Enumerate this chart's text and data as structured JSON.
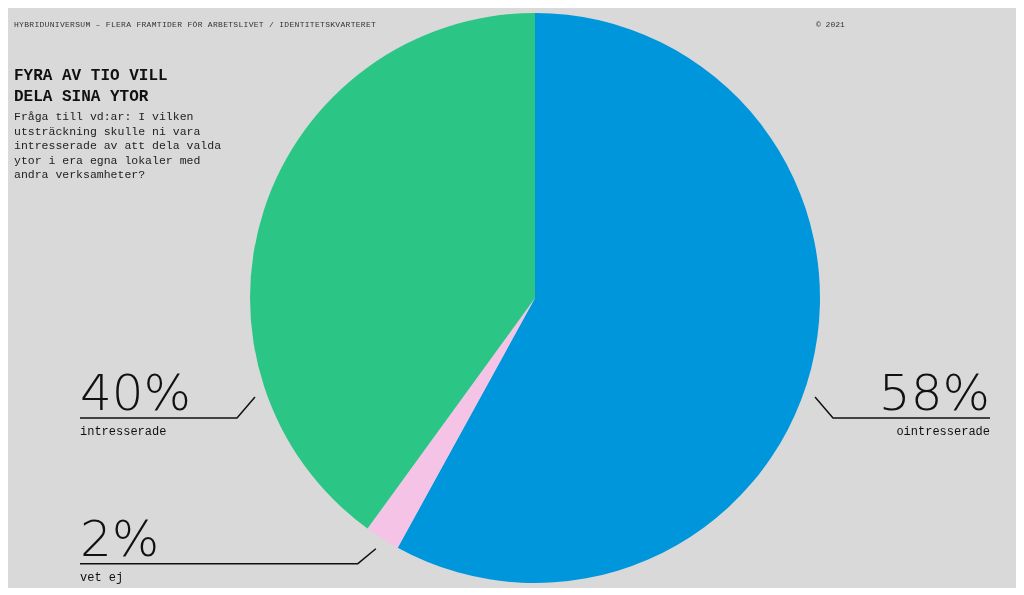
{
  "chart_data": {
    "type": "pie",
    "title": "FYRA AV TIO VILL DELA SINA YTOR",
    "subtitle": "Fråga till vd:ar: I vilken utsträckning skulle ni vara intresserade av att dela valda ytor i era egna lokaler med andra verksamheter?",
    "annotations": [
      "HYBRIDUNIVERSUM – FLERA FRAMTIDER FÖR ARBETSLIVET  /  IDENTITETSKVARTERET",
      "© 2021"
    ],
    "categories": [
      "ointresserade",
      "vet ej",
      "intresserade"
    ],
    "values": [
      58,
      2,
      40
    ],
    "colors": [
      "#0096db",
      "#f5c3e6",
      "#2bc685"
    ],
    "value_labels": [
      "58%",
      "2%",
      "40%"
    ]
  }
}
